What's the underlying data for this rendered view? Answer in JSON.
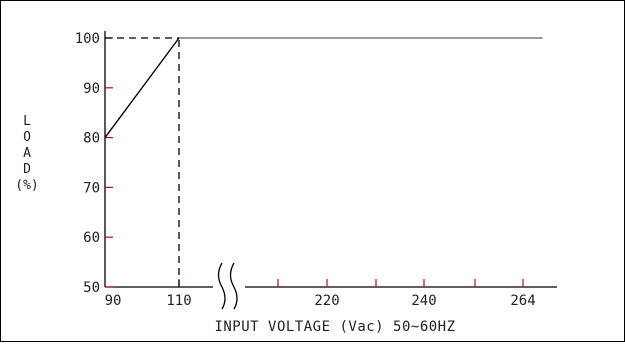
{
  "chart_data": {
    "type": "line",
    "ylabel_chars": [
      "L",
      "O",
      "A",
      "D",
      "(%)"
    ],
    "xlabel": "INPUT VOLTAGE (Vac) 50~60HZ",
    "x_tick_labels": [
      "90",
      "110",
      "220",
      "240",
      "264"
    ],
    "y_tick_labels": [
      "50",
      "60",
      "70",
      "80",
      "90",
      "100"
    ],
    "ylim": [
      50,
      100
    ],
    "x_breaks": [
      "110",
      "220"
    ],
    "grid": false,
    "series": [
      {
        "points": [
          {
            "x": 90,
            "y": 80
          },
          {
            "x": 110,
            "y": 100
          },
          {
            "x": 264,
            "y": 100
          }
        ]
      }
    ],
    "reference_lines": [
      {
        "orientation": "horizontal",
        "y": 100,
        "from_x": 90,
        "to_x": 110,
        "style": "dashed"
      },
      {
        "orientation": "vertical",
        "x": 110,
        "from_y": 50,
        "to_y": 100,
        "style": "dashed"
      }
    ],
    "colors": {
      "axis": "#000000",
      "derating_line": "#000000",
      "flat_line": "#9a9a9a",
      "tick": "#c0003a",
      "text": "#222222"
    }
  }
}
